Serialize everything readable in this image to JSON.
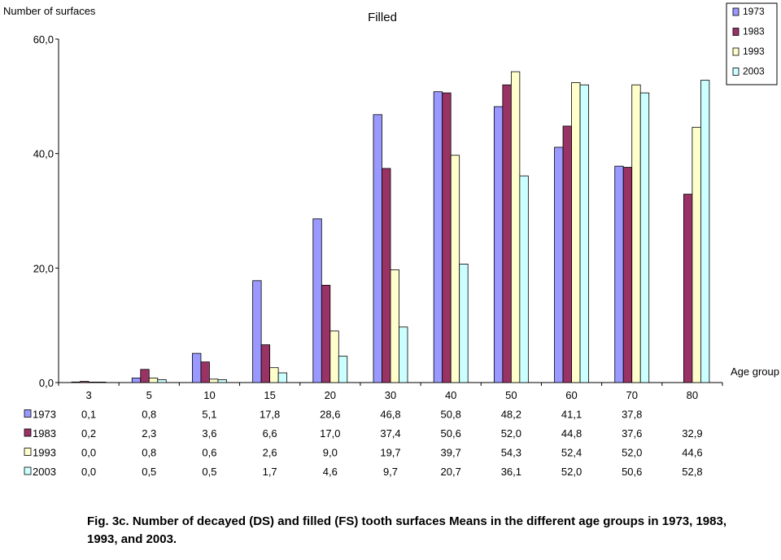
{
  "chart_data": {
    "type": "bar",
    "title": "Filled",
    "ylabel": "Number of surfaces",
    "xlabel": "Age group",
    "ylim": [
      0,
      60
    ],
    "yticks": [
      "0,0",
      "20,0",
      "40,0",
      "60,0"
    ],
    "ytick_values": [
      0,
      20,
      40,
      60
    ],
    "categories": [
      "3",
      "5",
      "10",
      "15",
      "20",
      "30",
      "40",
      "50",
      "60",
      "70",
      "80"
    ],
    "grid": false,
    "legend_position": "top-right",
    "series": [
      {
        "name": "1973",
        "color": "#9999ff",
        "values": [
          0.1,
          0.8,
          5.1,
          17.8,
          28.6,
          46.8,
          50.8,
          48.2,
          41.1,
          37.8,
          null
        ],
        "labels": [
          "0,1",
          "0,8",
          "5,1",
          "17,8",
          "28,6",
          "46,8",
          "50,8",
          "48,2",
          "41,1",
          "37,8",
          ""
        ]
      },
      {
        "name": "1983",
        "color": "#993366",
        "values": [
          0.2,
          2.3,
          3.6,
          6.6,
          17.0,
          37.4,
          50.6,
          52.0,
          44.8,
          37.6,
          32.9
        ],
        "labels": [
          "0,2",
          "2,3",
          "3,6",
          "6,6",
          "17,0",
          "37,4",
          "50,6",
          "52,0",
          "44,8",
          "37,6",
          "32,9"
        ]
      },
      {
        "name": "1993",
        "color": "#ffffcc",
        "values": [
          0.0,
          0.8,
          0.6,
          2.6,
          9.0,
          19.7,
          39.7,
          54.3,
          52.4,
          52.0,
          44.6
        ],
        "labels": [
          "0,0",
          "0,8",
          "0,6",
          "2,6",
          "9,0",
          "19,7",
          "39,7",
          "54,3",
          "52,4",
          "52,0",
          "44,6"
        ]
      },
      {
        "name": "2003",
        "color": "#ccffff",
        "values": [
          0.0,
          0.5,
          0.5,
          1.7,
          4.6,
          9.7,
          20.7,
          36.1,
          52.0,
          50.6,
          52.8
        ],
        "labels": [
          "0,0",
          "0,5",
          "0,5",
          "1,7",
          "4,6",
          "9,7",
          "20,7",
          "36,1",
          "52,0",
          "50,6",
          "52,8"
        ]
      }
    ]
  },
  "caption": "Fig. 3c. Number of decayed (DS) and filled (FS) tooth surfaces Means in the different age groups in 1973, 1983, 1993, and 2003."
}
